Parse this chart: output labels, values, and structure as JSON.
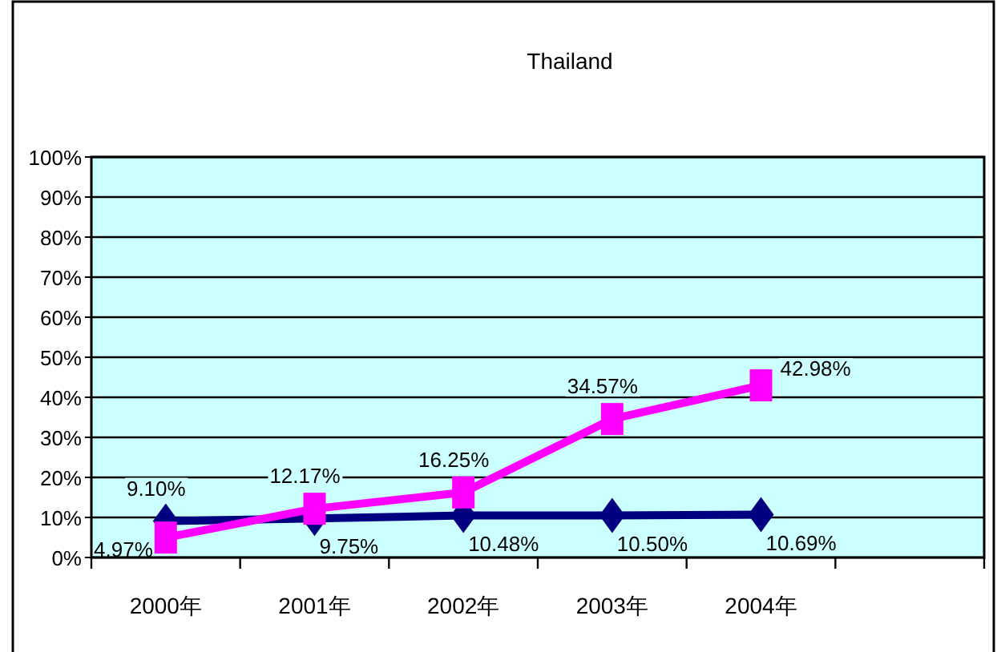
{
  "chart_data": {
    "type": "line",
    "title": "Thailand",
    "categories": [
      "2000年",
      "2001年",
      "2002年",
      "2003年",
      "2004年",
      null
    ],
    "series": [
      {
        "color": "#000080",
        "marker": "diamond",
        "values": [
          9.1,
          9.75,
          10.48,
          10.5,
          10.69,
          null
        ],
        "value_labels": [
          "9.10%",
          "9.75%",
          "10.48%",
          "10.50%",
          "10.69%",
          null
        ]
      },
      {
        "color": "#ff00ff",
        "marker": "square",
        "values": [
          4.97,
          12.17,
          16.25,
          34.57,
          42.98,
          null
        ],
        "value_labels": [
          "4.97%",
          "12.17%",
          "16.25%",
          "34.57%",
          "42.98%",
          null
        ]
      }
    ],
    "ylim": [
      0,
      100
    ],
    "yticks": [
      {
        "value": 0,
        "label": "0%"
      },
      {
        "value": 10,
        "label": "10%"
      },
      {
        "value": 20,
        "label": "20%"
      },
      {
        "value": 30,
        "label": "30%"
      },
      {
        "value": 40,
        "label": "40%"
      },
      {
        "value": 50,
        "label": "50%"
      },
      {
        "value": 60,
        "label": "60%"
      },
      {
        "value": 70,
        "label": "70%"
      },
      {
        "value": 80,
        "label": "80%"
      },
      {
        "value": 90,
        "label": "90%"
      },
      {
        "value": 100,
        "label": "100%"
      }
    ],
    "grid": "y"
  }
}
